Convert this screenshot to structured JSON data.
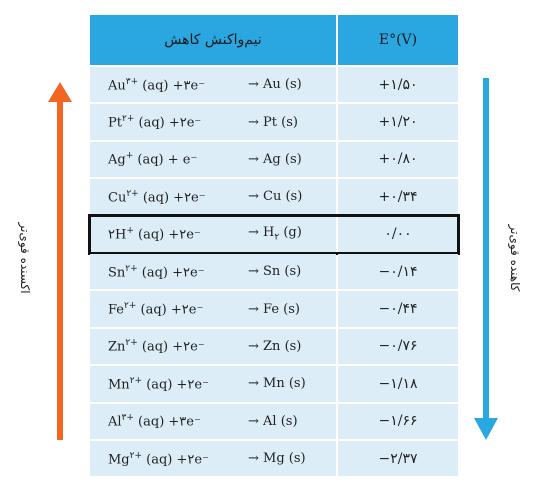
{
  "table": {
    "header": {
      "reaction": "نیم‌واکنش کاهش",
      "potential": "E°(V)"
    },
    "rows": [
      {
        "ox": {
          "base": "Au",
          "sup": "۳+",
          "tail": " (aq) +۳e⁻"
        },
        "red": {
          "base": "→ Au (s)"
        },
        "e": "+۱/۵۰"
      },
      {
        "ox": {
          "base": "Pt",
          "sup": "۲+",
          "tail": " (aq) +۲e⁻"
        },
        "red": {
          "base": "→ Pt (s)"
        },
        "e": "+۱/۲۰"
      },
      {
        "ox": {
          "base": "Ag",
          "sup": "+",
          "tail": " (aq) + e⁻"
        },
        "red": {
          "base": "→ Ag (s)"
        },
        "e": "+۰/۸۰"
      },
      {
        "ox": {
          "base": "Cu",
          "sup": "۲+",
          "tail": " (aq) +۲e⁻"
        },
        "red": {
          "base": "→ Cu (s)"
        },
        "e": "+۰/۳۴"
      },
      {
        "ox": {
          "base": "۲H",
          "sup": "+",
          "tail": " (aq) +۲e⁻"
        },
        "red": {
          "base": "→ H",
          "sub": "۲",
          "tail": " (g)"
        },
        "e": "۰/۰۰",
        "highlighted": true
      },
      {
        "ox": {
          "base": "Sn",
          "sup": "۲+",
          "tail": " (aq) +۲e⁻"
        },
        "red": {
          "base": "→ Sn (s)"
        },
        "e": "−۰/۱۴"
      },
      {
        "ox": {
          "base": "Fe",
          "sup": "۲+",
          "tail": " (aq) +۲e⁻"
        },
        "red": {
          "base": "→ Fe (s)"
        },
        "e": "−۰/۴۴"
      },
      {
        "ox": {
          "base": "Zn",
          "sup": "۲+",
          "tail": " (aq) +۲e⁻"
        },
        "red": {
          "base": "→ Zn (s)"
        },
        "e": "−۰/۷۶"
      },
      {
        "ox": {
          "base": "Mn",
          "sup": "۲+",
          "tail": " (aq) +۲e⁻"
        },
        "red": {
          "base": "→ Mn (s)"
        },
        "e": "−۱/۱۸"
      },
      {
        "ox": {
          "base": "Al",
          "sup": "۳+",
          "tail": " (aq) +۳e⁻"
        },
        "red": {
          "base": "→ Al (s)"
        },
        "e": "−۱/۶۶"
      },
      {
        "ox": {
          "base": "Mg",
          "sup": "۲+",
          "tail": " (aq) +۲e⁻"
        },
        "red": {
          "base": "→ Mg (s)"
        },
        "e": "−۲/۳۷"
      }
    ]
  },
  "side_labels": {
    "left": "اکسنده قوی‌تر",
    "right": "کاهنده قوی‌تر"
  }
}
